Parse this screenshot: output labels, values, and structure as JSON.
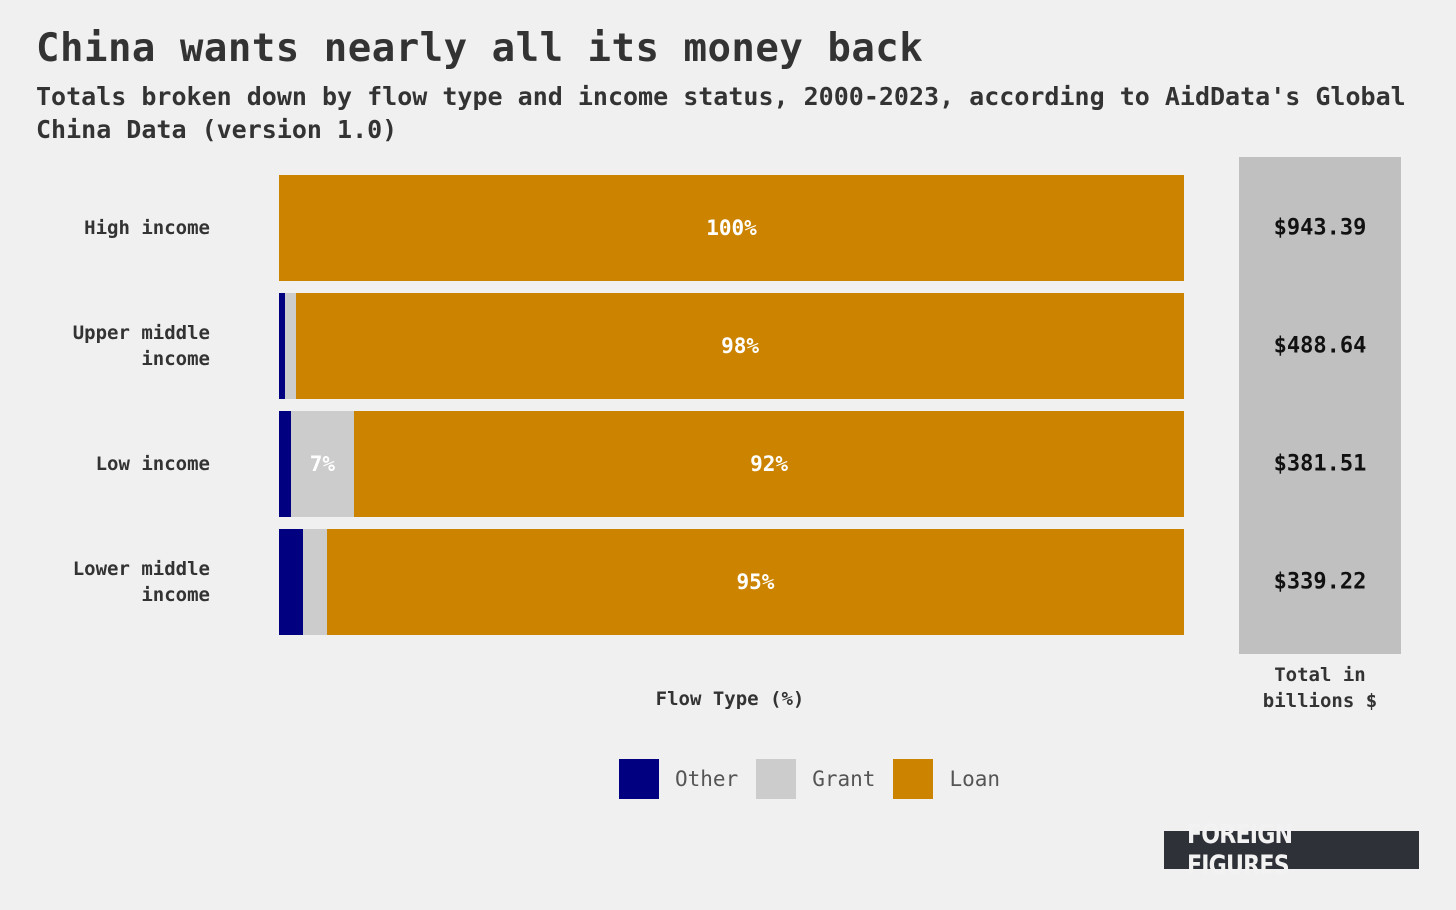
{
  "title": "China wants nearly all its money back",
  "subtitle": "Totals broken down by flow type and income status, 2000-2023, according to AidData's Global China Data (version 1.0)",
  "colors": {
    "other": "#000080",
    "grant": "#cccccc",
    "loan": "#cc8400",
    "background": "#f0f0f0",
    "total_column": "#c0c0c0"
  },
  "chart_data": {
    "type": "bar",
    "orientation": "horizontal",
    "stacked": "percent",
    "categories": [
      "High income",
      "Upper middle income",
      "Low income",
      "Lower middle income"
    ],
    "series": [
      {
        "name": "Other",
        "values": [
          0.0,
          0.7,
          1.3,
          2.6
        ]
      },
      {
        "name": "Grant",
        "values": [
          0.0,
          1.2,
          7.0,
          2.7
        ]
      },
      {
        "name": "Loan",
        "values": [
          100.0,
          98.1,
          91.7,
          94.7
        ]
      }
    ],
    "data_labels": [
      {
        "row": 0,
        "series": "Loan",
        "text": "100%"
      },
      {
        "row": 1,
        "series": "Loan",
        "text": "98%"
      },
      {
        "row": 2,
        "series": "Grant",
        "text": "7%"
      },
      {
        "row": 2,
        "series": "Loan",
        "text": "92%"
      },
      {
        "row": 3,
        "series": "Loan",
        "text": "95%"
      }
    ],
    "totals": [
      "$943.39",
      "$488.64",
      "$381.51",
      "$339.22"
    ],
    "totals_label": "Total in billions $",
    "xlabel": "Flow Type (%)",
    "ylabel": "",
    "xlim": [
      0,
      100
    ],
    "legend": {
      "placement": "bottom-center",
      "entries": [
        "Other",
        "Grant",
        "Loan"
      ]
    },
    "grid": false
  },
  "logo_text": "FOREIGN FIGURES"
}
